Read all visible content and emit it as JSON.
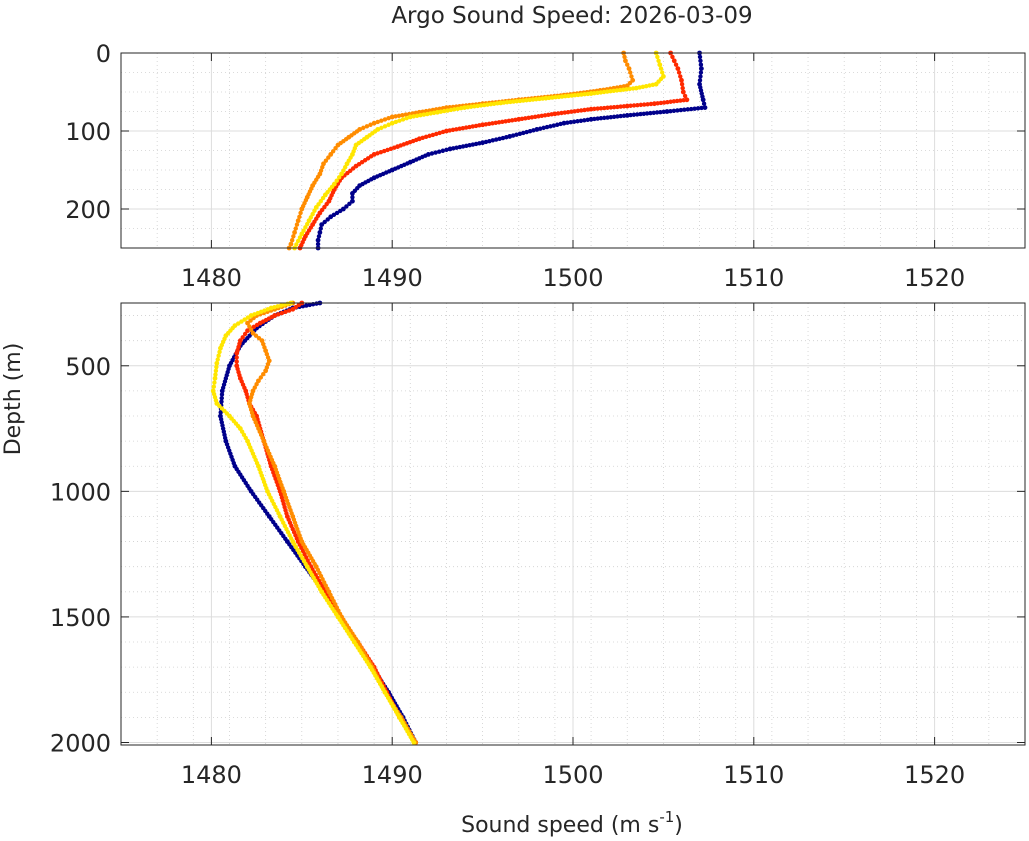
{
  "figure": {
    "title": "Argo Sound Speed: 2026-03-09",
    "xlabel": "Sound speed (m s",
    "xlabel_superscript": "-1",
    "xlabel_suffix": ")",
    "ylabel": "Depth (m)"
  },
  "chart_data": [
    {
      "type": "scatter",
      "panel": "top",
      "grid": true,
      "minor_grid": true,
      "y_reversed": true,
      "xlim": [
        1475,
        1525
      ],
      "ylim": [
        0,
        250
      ],
      "xticks": [
        1480,
        1490,
        1500,
        1510,
        1520
      ],
      "xtick_labels": [
        "1480",
        "1490",
        "1500",
        "1510",
        "1520"
      ],
      "yticks": [
        0,
        100,
        200
      ],
      "ytick_labels": [
        "0",
        "100",
        "200"
      ],
      "series": [
        {
          "color": "#00008B",
          "points": [
            [
              1507.0,
              0
            ],
            [
              1507.1,
              20
            ],
            [
              1507.0,
              40
            ],
            [
              1507.2,
              60
            ],
            [
              1507.3,
              70
            ],
            [
              1505.2,
              75
            ],
            [
              1503.0,
              80
            ],
            [
              1501.0,
              85
            ],
            [
              1499.5,
              90
            ],
            [
              1498.0,
              98
            ],
            [
              1496.5,
              107
            ],
            [
              1495.0,
              115
            ],
            [
              1493.2,
              123
            ],
            [
              1492.0,
              130
            ],
            [
              1491.0,
              140
            ],
            [
              1490.0,
              150
            ],
            [
              1489.0,
              160
            ],
            [
              1488.2,
              170
            ],
            [
              1487.8,
              180
            ],
            [
              1487.8,
              190
            ],
            [
              1487.3,
              200
            ],
            [
              1486.6,
              210
            ],
            [
              1486.1,
              220
            ],
            [
              1486.0,
              230
            ],
            [
              1485.9,
              240
            ],
            [
              1485.9,
              250
            ]
          ]
        },
        {
          "color": "#FF2A00",
          "points": [
            [
              1505.4,
              0
            ],
            [
              1505.6,
              10
            ],
            [
              1505.8,
              20
            ],
            [
              1506.0,
              35
            ],
            [
              1506.1,
              50
            ],
            [
              1506.3,
              60
            ],
            [
              1504.5,
              65
            ],
            [
              1503.0,
              68
            ],
            [
              1501.0,
              72
            ],
            [
              1499.0,
              78
            ],
            [
              1497.0,
              85
            ],
            [
              1495.0,
              92
            ],
            [
              1493.0,
              100
            ],
            [
              1491.5,
              110
            ],
            [
              1490.3,
              120
            ],
            [
              1489.0,
              130
            ],
            [
              1488.0,
              145
            ],
            [
              1487.2,
              160
            ],
            [
              1486.8,
              175
            ],
            [
              1486.5,
              190
            ],
            [
              1486.0,
              205
            ],
            [
              1485.6,
              220
            ],
            [
              1485.2,
              235
            ],
            [
              1484.9,
              250
            ]
          ]
        },
        {
          "color": "#FF8C00",
          "points": [
            [
              1502.8,
              0
            ],
            [
              1502.9,
              10
            ],
            [
              1503.1,
              20
            ],
            [
              1503.3,
              35
            ],
            [
              1503.0,
              42
            ],
            [
              1501.5,
              48
            ],
            [
              1499.5,
              54
            ],
            [
              1497.0,
              60
            ],
            [
              1495.0,
              65
            ],
            [
              1493.0,
              70
            ],
            [
              1491.5,
              76
            ],
            [
              1490.0,
              82
            ],
            [
              1489.0,
              90
            ],
            [
              1488.2,
              98
            ],
            [
              1487.6,
              108
            ],
            [
              1487.0,
              118
            ],
            [
              1486.6,
              130
            ],
            [
              1486.2,
              142
            ],
            [
              1486.0,
              155
            ],
            [
              1485.6,
              170
            ],
            [
              1485.3,
              185
            ],
            [
              1485.0,
              200
            ],
            [
              1484.8,
              215
            ],
            [
              1484.6,
              230
            ],
            [
              1484.4,
              245
            ],
            [
              1484.3,
              250
            ]
          ]
        },
        {
          "color": "#FFE600",
          "points": [
            [
              1504.6,
              0
            ],
            [
              1504.8,
              15
            ],
            [
              1505.0,
              30
            ],
            [
              1504.6,
              40
            ],
            [
              1503.5,
              45
            ],
            [
              1501.0,
              52
            ],
            [
              1498.5,
              58
            ],
            [
              1496.0,
              64
            ],
            [
              1494.0,
              70
            ],
            [
              1492.5,
              76
            ],
            [
              1491.0,
              82
            ],
            [
              1490.0,
              90
            ],
            [
              1489.2,
              98
            ],
            [
              1488.6,
              108
            ],
            [
              1488.0,
              118
            ],
            [
              1487.8,
              130
            ],
            [
              1487.5,
              142
            ],
            [
              1487.2,
              155
            ],
            [
              1486.8,
              168
            ],
            [
              1486.3,
              182
            ],
            [
              1485.8,
              198
            ],
            [
              1485.4,
              215
            ],
            [
              1485.0,
              232
            ],
            [
              1484.6,
              250
            ]
          ]
        }
      ]
    },
    {
      "type": "scatter",
      "panel": "bottom",
      "grid": true,
      "minor_grid": true,
      "y_reversed": true,
      "xlim": [
        1475,
        1525
      ],
      "ylim": [
        250,
        2010
      ],
      "xticks": [
        1480,
        1490,
        1500,
        1510,
        1520
      ],
      "xtick_labels": [
        "1480",
        "1490",
        "1500",
        "1510",
        "1520"
      ],
      "yticks": [
        500,
        1000,
        1500,
        2000
      ],
      "ytick_labels": [
        "500",
        "1000",
        "1500",
        "2000"
      ],
      "series": [
        {
          "color": "#00008B",
          "points": [
            [
              1486.0,
              250
            ],
            [
              1484.5,
              270
            ],
            [
              1483.5,
              300
            ],
            [
              1482.5,
              350
            ],
            [
              1481.6,
              420
            ],
            [
              1481.0,
              500
            ],
            [
              1480.6,
              600
            ],
            [
              1480.5,
              700
            ],
            [
              1480.8,
              800
            ],
            [
              1481.3,
              900
            ],
            [
              1482.2,
              1000
            ],
            [
              1483.2,
              1100
            ],
            [
              1484.2,
              1200
            ],
            [
              1485.2,
              1300
            ],
            [
              1486.2,
              1400
            ],
            [
              1487.1,
              1500
            ],
            [
              1488.0,
              1600
            ],
            [
              1488.9,
              1700
            ],
            [
              1489.8,
              1800
            ],
            [
              1490.6,
              1900
            ],
            [
              1491.3,
              2000
            ]
          ]
        },
        {
          "color": "#FF2A00",
          "points": [
            [
              1485.0,
              250
            ],
            [
              1484.5,
              275
            ],
            [
              1483.5,
              300
            ],
            [
              1482.7,
              330
            ],
            [
              1482.0,
              360
            ],
            [
              1481.6,
              400
            ],
            [
              1481.4,
              450
            ],
            [
              1481.4,
              500
            ],
            [
              1481.6,
              550
            ],
            [
              1481.9,
              600
            ],
            [
              1482.1,
              650
            ],
            [
              1482.5,
              700
            ],
            [
              1482.9,
              800
            ],
            [
              1483.3,
              900
            ],
            [
              1483.8,
              1000
            ],
            [
              1484.2,
              1100
            ],
            [
              1484.8,
              1200
            ],
            [
              1485.5,
              1300
            ],
            [
              1486.3,
              1400
            ],
            [
              1487.1,
              1500
            ],
            [
              1488.1,
              1600
            ],
            [
              1489.0,
              1700
            ],
            [
              1489.7,
              1800
            ],
            [
              1490.4,
              1900
            ],
            [
              1491.3,
              2000
            ]
          ]
        },
        {
          "color": "#FF8C00",
          "points": [
            [
              1484.5,
              250
            ],
            [
              1483.5,
              275
            ],
            [
              1482.5,
              300
            ],
            [
              1482.0,
              330
            ],
            [
              1482.3,
              370
            ],
            [
              1482.8,
              400
            ],
            [
              1483.0,
              440
            ],
            [
              1483.2,
              480
            ],
            [
              1483.0,
              520
            ],
            [
              1482.6,
              560
            ],
            [
              1482.3,
              600
            ],
            [
              1482.1,
              650
            ],
            [
              1482.3,
              700
            ],
            [
              1482.9,
              800
            ],
            [
              1483.5,
              900
            ],
            [
              1484.0,
              1000
            ],
            [
              1484.5,
              1100
            ],
            [
              1485.0,
              1200
            ],
            [
              1485.8,
              1300
            ],
            [
              1486.5,
              1400
            ],
            [
              1487.2,
              1500
            ],
            [
              1488.1,
              1600
            ],
            [
              1488.9,
              1700
            ],
            [
              1489.6,
              1800
            ],
            [
              1490.5,
              1900
            ],
            [
              1491.3,
              2000
            ]
          ]
        },
        {
          "color": "#FFE600",
          "points": [
            [
              1484.4,
              250
            ],
            [
              1483.3,
              270
            ],
            [
              1482.2,
              300
            ],
            [
              1481.3,
              340
            ],
            [
              1480.8,
              380
            ],
            [
              1480.5,
              430
            ],
            [
              1480.3,
              490
            ],
            [
              1480.2,
              550
            ],
            [
              1480.1,
              600
            ],
            [
              1480.3,
              650
            ],
            [
              1481.0,
              700
            ],
            [
              1481.6,
              750
            ],
            [
              1482.0,
              800
            ],
            [
              1482.6,
              900
            ],
            [
              1483.1,
              1000
            ],
            [
              1483.8,
              1100
            ],
            [
              1484.5,
              1200
            ],
            [
              1485.3,
              1300
            ],
            [
              1486.1,
              1400
            ],
            [
              1487.0,
              1500
            ],
            [
              1487.9,
              1600
            ],
            [
              1488.8,
              1700
            ],
            [
              1489.6,
              1800
            ],
            [
              1490.4,
              1900
            ],
            [
              1491.2,
              2000
            ]
          ]
        }
      ]
    }
  ]
}
